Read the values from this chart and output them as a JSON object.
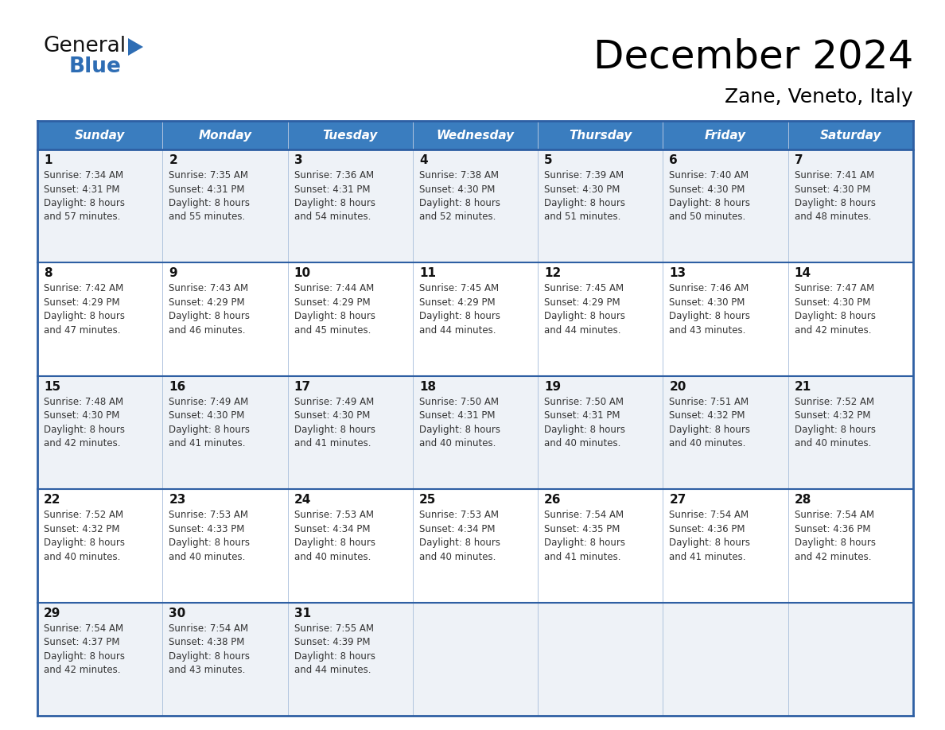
{
  "title": "December 2024",
  "subtitle": "Zane, Veneto, Italy",
  "header_color": "#3a7dbf",
  "header_text_color": "#ffffff",
  "days_of_week": [
    "Sunday",
    "Monday",
    "Tuesday",
    "Wednesday",
    "Thursday",
    "Friday",
    "Saturday"
  ],
  "cell_bg_odd": "#eef2f7",
  "cell_bg_even": "#ffffff",
  "border_color": "#2e5fa3",
  "col_divider_color": "#b0c4de",
  "day_number_color": "#111111",
  "text_color": "#333333",
  "logo_general_color": "#111111",
  "logo_blue_color": "#2e6db4",
  "logo_triangle_color": "#2e6db4",
  "calendar_data": [
    [
      {
        "day": 1,
        "sunrise": "7:34 AM",
        "sunset": "4:31 PM",
        "daylight": "8 hours\nand 57 minutes."
      },
      {
        "day": 2,
        "sunrise": "7:35 AM",
        "sunset": "4:31 PM",
        "daylight": "8 hours\nand 55 minutes."
      },
      {
        "day": 3,
        "sunrise": "7:36 AM",
        "sunset": "4:31 PM",
        "daylight": "8 hours\nand 54 minutes."
      },
      {
        "day": 4,
        "sunrise": "7:38 AM",
        "sunset": "4:30 PM",
        "daylight": "8 hours\nand 52 minutes."
      },
      {
        "day": 5,
        "sunrise": "7:39 AM",
        "sunset": "4:30 PM",
        "daylight": "8 hours\nand 51 minutes."
      },
      {
        "day": 6,
        "sunrise": "7:40 AM",
        "sunset": "4:30 PM",
        "daylight": "8 hours\nand 50 minutes."
      },
      {
        "day": 7,
        "sunrise": "7:41 AM",
        "sunset": "4:30 PM",
        "daylight": "8 hours\nand 48 minutes."
      }
    ],
    [
      {
        "day": 8,
        "sunrise": "7:42 AM",
        "sunset": "4:29 PM",
        "daylight": "8 hours\nand 47 minutes."
      },
      {
        "day": 9,
        "sunrise": "7:43 AM",
        "sunset": "4:29 PM",
        "daylight": "8 hours\nand 46 minutes."
      },
      {
        "day": 10,
        "sunrise": "7:44 AM",
        "sunset": "4:29 PM",
        "daylight": "8 hours\nand 45 minutes."
      },
      {
        "day": 11,
        "sunrise": "7:45 AM",
        "sunset": "4:29 PM",
        "daylight": "8 hours\nand 44 minutes."
      },
      {
        "day": 12,
        "sunrise": "7:45 AM",
        "sunset": "4:29 PM",
        "daylight": "8 hours\nand 44 minutes."
      },
      {
        "day": 13,
        "sunrise": "7:46 AM",
        "sunset": "4:30 PM",
        "daylight": "8 hours\nand 43 minutes."
      },
      {
        "day": 14,
        "sunrise": "7:47 AM",
        "sunset": "4:30 PM",
        "daylight": "8 hours\nand 42 minutes."
      }
    ],
    [
      {
        "day": 15,
        "sunrise": "7:48 AM",
        "sunset": "4:30 PM",
        "daylight": "8 hours\nand 42 minutes."
      },
      {
        "day": 16,
        "sunrise": "7:49 AM",
        "sunset": "4:30 PM",
        "daylight": "8 hours\nand 41 minutes."
      },
      {
        "day": 17,
        "sunrise": "7:49 AM",
        "sunset": "4:30 PM",
        "daylight": "8 hours\nand 41 minutes."
      },
      {
        "day": 18,
        "sunrise": "7:50 AM",
        "sunset": "4:31 PM",
        "daylight": "8 hours\nand 40 minutes."
      },
      {
        "day": 19,
        "sunrise": "7:50 AM",
        "sunset": "4:31 PM",
        "daylight": "8 hours\nand 40 minutes."
      },
      {
        "day": 20,
        "sunrise": "7:51 AM",
        "sunset": "4:32 PM",
        "daylight": "8 hours\nand 40 minutes."
      },
      {
        "day": 21,
        "sunrise": "7:52 AM",
        "sunset": "4:32 PM",
        "daylight": "8 hours\nand 40 minutes."
      }
    ],
    [
      {
        "day": 22,
        "sunrise": "7:52 AM",
        "sunset": "4:32 PM",
        "daylight": "8 hours\nand 40 minutes."
      },
      {
        "day": 23,
        "sunrise": "7:53 AM",
        "sunset": "4:33 PM",
        "daylight": "8 hours\nand 40 minutes."
      },
      {
        "day": 24,
        "sunrise": "7:53 AM",
        "sunset": "4:34 PM",
        "daylight": "8 hours\nand 40 minutes."
      },
      {
        "day": 25,
        "sunrise": "7:53 AM",
        "sunset": "4:34 PM",
        "daylight": "8 hours\nand 40 minutes."
      },
      {
        "day": 26,
        "sunrise": "7:54 AM",
        "sunset": "4:35 PM",
        "daylight": "8 hours\nand 41 minutes."
      },
      {
        "day": 27,
        "sunrise": "7:54 AM",
        "sunset": "4:36 PM",
        "daylight": "8 hours\nand 41 minutes."
      },
      {
        "day": 28,
        "sunrise": "7:54 AM",
        "sunset": "4:36 PM",
        "daylight": "8 hours\nand 42 minutes."
      }
    ],
    [
      {
        "day": 29,
        "sunrise": "7:54 AM",
        "sunset": "4:37 PM",
        "daylight": "8 hours\nand 42 minutes."
      },
      {
        "day": 30,
        "sunrise": "7:54 AM",
        "sunset": "4:38 PM",
        "daylight": "8 hours\nand 43 minutes."
      },
      {
        "day": 31,
        "sunrise": "7:55 AM",
        "sunset": "4:39 PM",
        "daylight": "8 hours\nand 44 minutes."
      },
      null,
      null,
      null,
      null
    ]
  ]
}
